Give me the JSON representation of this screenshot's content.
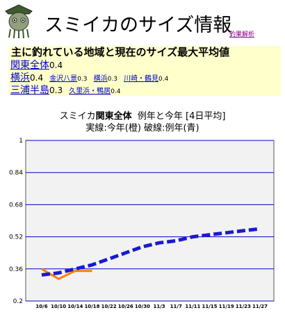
{
  "page": {
    "title": "スミイカのサイズ情報",
    "link_label": "釣果解析"
  },
  "summary": {
    "heading": "主に釣れている地域と現在のサイズ最大平均値",
    "region": {
      "name": "関東全体",
      "value": "0.4"
    },
    "groups": [
      {
        "name": "横浜",
        "value": "0.4",
        "subs": [
          {
            "name": "金沢八景",
            "value": "0.3"
          },
          {
            "name": "横浜",
            "value": "0.3"
          },
          {
            "name": "川崎・鶴見",
            "value": "0.4"
          }
        ]
      },
      {
        "name": "三浦半島",
        "value": "0.3",
        "subs": [
          {
            "name": "久里浜・鴨居",
            "value": "0.4"
          }
        ]
      }
    ]
  },
  "chart_header": {
    "prefix": "スミイカ",
    "region": "関東全体",
    "suffix": "例年と今年 [4日平均]",
    "line2": "実線:今年(橙) 破線:例年(青)"
  },
  "colors": {
    "this_year": "#ff7f00",
    "average": "#1a1acc",
    "grid": "#0000cc",
    "plot_bg": "#f2f2f2"
  },
  "chart_data": {
    "type": "line",
    "x": [
      "10/6",
      "10/10",
      "10/14",
      "10/18",
      "10/22",
      "10/26",
      "10/30",
      "11/3",
      "11/7",
      "11/11",
      "11/15",
      "11/19",
      "11/23",
      "11/27"
    ],
    "yticks": [
      "0.2",
      "0.36",
      "0.52",
      "0.68",
      "0.84",
      "1"
    ],
    "ylim": [
      0.2,
      1
    ],
    "grid": true,
    "series": [
      {
        "name": "今年",
        "style": "solid",
        "values": [
          0.36,
          0.31,
          0.35,
          0.35,
          null,
          null,
          null,
          null,
          null,
          null,
          null,
          null,
          null,
          null
        ]
      },
      {
        "name": "例年",
        "style": "dashed",
        "values": [
          0.33,
          0.34,
          0.36,
          0.38,
          0.41,
          0.44,
          0.47,
          0.49,
          0.5,
          0.52,
          0.53,
          0.54,
          0.55,
          0.56
        ]
      }
    ]
  }
}
